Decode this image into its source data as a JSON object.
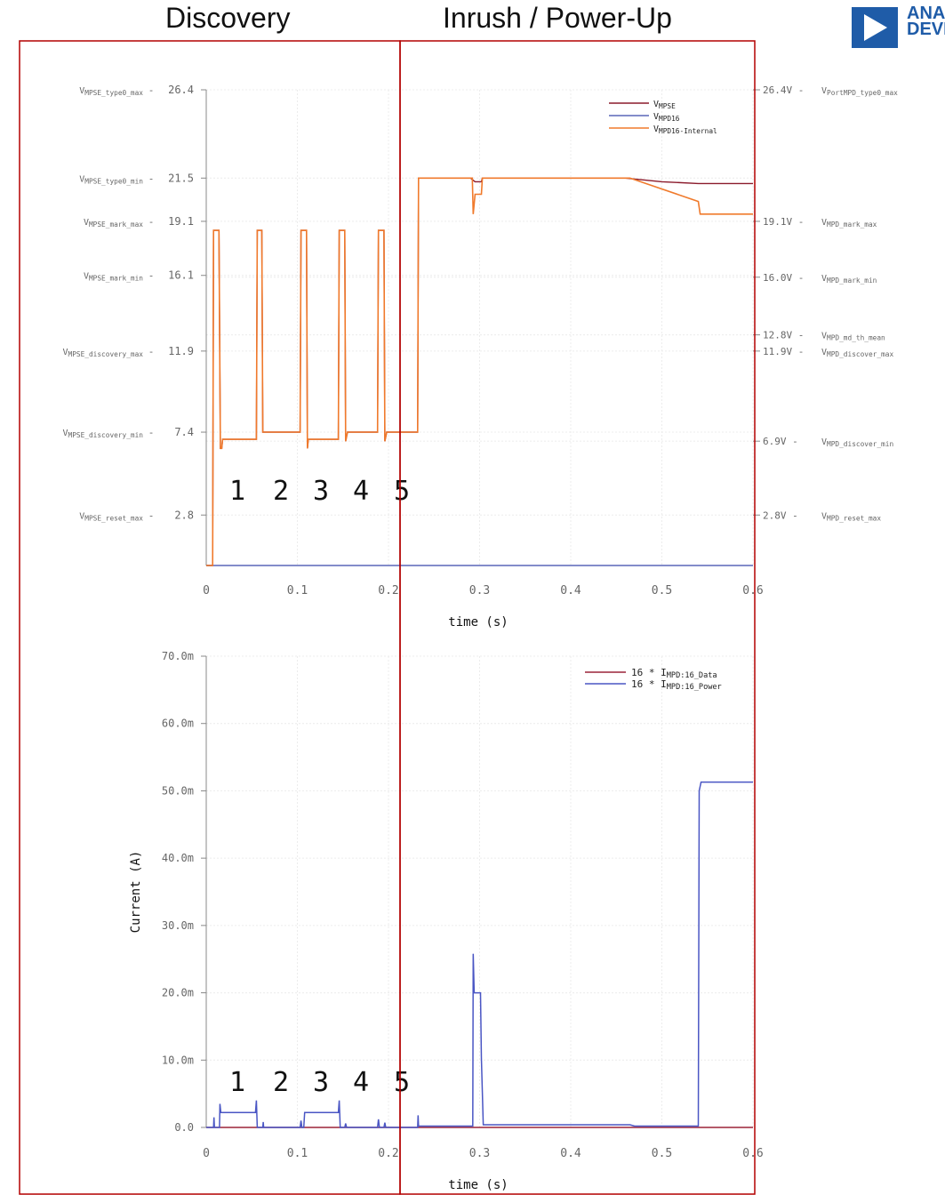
{
  "headers": {
    "discovery": "Discovery",
    "inrush": "Inrush / Power-Up"
  },
  "logo": {
    "line1": "ANALOG",
    "line2": "DEVICES",
    "color": "#1f5ca8"
  },
  "colors": {
    "mpse": "#8b1a2b",
    "mpd16": "#5a67b8",
    "internal": "#f07a2c",
    "frame": "#b30000",
    "data": "#9c2338",
    "power": "#4a56c4"
  },
  "chart_data": [
    {
      "type": "line",
      "xlabel": "time (s)",
      "ylabel": "",
      "xlim": [
        0,
        0.6
      ],
      "ylim": [
        0,
        26.4
      ],
      "x_ticks": [
        "0",
        "0.1",
        "0.2",
        "0.3",
        "0.4",
        "0.5",
        "0.6"
      ],
      "y_ticks": [
        {
          "value": 26.4,
          "label": "26.4",
          "left_name": "V",
          "left_sub": "MPSE_type0_max",
          "right": "26.4V -",
          "right_name": "V",
          "right_sub": "Port",
          "right_sub2": "MPD_type0_max"
        },
        {
          "value": 21.5,
          "label": "21.5",
          "left_name": "V",
          "left_sub": "MPSE_type0_min"
        },
        {
          "value": 19.1,
          "label": "19.1",
          "left_name": "V",
          "left_sub": "MPSE_mark_max",
          "right": "19.1V -",
          "right_name": "V",
          "right_sub": "MPD_mark_max"
        },
        {
          "value": 16.1,
          "label": "16.1",
          "left_name": "V",
          "left_sub": "MPSE_mark_min"
        },
        {
          "value": 16.0,
          "right": "16.0V -",
          "right_name": "V",
          "right_sub": "MPD_mark_min"
        },
        {
          "value": 12.8,
          "right": "12.8V -",
          "right_name": "V",
          "right_sub": "MPD_md_th_mean"
        },
        {
          "value": 11.9,
          "label": "11.9",
          "left_name": "V",
          "left_sub": "MPSE_discovery_max",
          "right": "11.9V -",
          "right_name": "V",
          "right_sub": "MPD_discover_max"
        },
        {
          "value": 7.4,
          "label": "7.4",
          "left_name": "V",
          "left_sub": "MPSE_discovery_min"
        },
        {
          "value": 6.9,
          "right": "6.9V -",
          "right_name": "V",
          "right_sub": "MPD_discover_min"
        },
        {
          "value": 2.8,
          "label": "2.8",
          "left_name": "V",
          "left_sub": "MPSE_reset_max",
          "right": "2.8V -",
          "right_name": "V",
          "right_sub": "MPD_reset_max"
        }
      ],
      "legend_position": "top-right",
      "series": [
        {
          "name": "V",
          "sub": "MPSE",
          "color": "#8b1a2b",
          "points": [
            [
              0,
              0
            ],
            [
              0.007,
              0
            ],
            [
              0.008,
              18.6
            ],
            [
              0.014,
              18.6
            ],
            [
              0.0155,
              6.5
            ],
            [
              0.017,
              6.5
            ],
            [
              0.018,
              7.0
            ],
            [
              0.055,
              7.0
            ],
            [
              0.056,
              18.6
            ],
            [
              0.061,
              18.6
            ],
            [
              0.062,
              7.4
            ],
            [
              0.103,
              7.4
            ],
            [
              0.104,
              18.6
            ],
            [
              0.11,
              18.6
            ],
            [
              0.111,
              6.5
            ],
            [
              0.112,
              7.0
            ],
            [
              0.145,
              7.0
            ],
            [
              0.146,
              18.6
            ],
            [
              0.152,
              18.6
            ],
            [
              0.153,
              6.9
            ],
            [
              0.155,
              7.4
            ],
            [
              0.188,
              7.4
            ],
            [
              0.189,
              18.6
            ],
            [
              0.195,
              18.6
            ],
            [
              0.196,
              6.9
            ],
            [
              0.198,
              7.4
            ],
            [
              0.232,
              7.4
            ],
            [
              0.233,
              21.5
            ],
            [
              0.29,
              21.5
            ],
            [
              0.295,
              21.3
            ],
            [
              0.302,
              21.3
            ],
            [
              0.303,
              21.5
            ],
            [
              0.46,
              21.5
            ],
            [
              0.5,
              21.3
            ],
            [
              0.54,
              21.2
            ],
            [
              0.6,
              21.2
            ]
          ]
        },
        {
          "name": "V",
          "sub": "MPD16",
          "color": "#5a67b8",
          "points": [
            [
              0,
              0
            ],
            [
              0.6,
              0
            ]
          ]
        },
        {
          "name": "V",
          "sub": "MPD16-Internal",
          "color": "#f07a2c",
          "points": [
            [
              0,
              0
            ],
            [
              0.007,
              0
            ],
            [
              0.008,
              18.6
            ],
            [
              0.014,
              18.6
            ],
            [
              0.0155,
              6.5
            ],
            [
              0.017,
              6.5
            ],
            [
              0.018,
              7.0
            ],
            [
              0.055,
              7.0
            ],
            [
              0.056,
              18.6
            ],
            [
              0.061,
              18.6
            ],
            [
              0.062,
              7.4
            ],
            [
              0.103,
              7.4
            ],
            [
              0.104,
              18.6
            ],
            [
              0.11,
              18.6
            ],
            [
              0.111,
              6.5
            ],
            [
              0.112,
              7.0
            ],
            [
              0.145,
              7.0
            ],
            [
              0.146,
              18.6
            ],
            [
              0.152,
              18.6
            ],
            [
              0.153,
              6.9
            ],
            [
              0.155,
              7.4
            ],
            [
              0.188,
              7.4
            ],
            [
              0.189,
              18.6
            ],
            [
              0.195,
              18.6
            ],
            [
              0.196,
              6.9
            ],
            [
              0.198,
              7.4
            ],
            [
              0.232,
              7.4
            ],
            [
              0.233,
              21.5
            ],
            [
              0.292,
              21.5
            ],
            [
              0.293,
              19.5
            ],
            [
              0.295,
              20.6
            ],
            [
              0.302,
              20.6
            ],
            [
              0.303,
              21.5
            ],
            [
              0.465,
              21.5
            ],
            [
              0.54,
              20.2
            ],
            [
              0.542,
              19.5
            ],
            [
              0.6,
              19.5
            ]
          ]
        }
      ],
      "annotations": [
        "1",
        "2",
        "3",
        "4",
        "5"
      ]
    },
    {
      "type": "line",
      "xlabel": "time (s)",
      "ylabel": "Current (A)",
      "xlim": [
        0,
        0.6
      ],
      "ylim": [
        0,
        0.07
      ],
      "x_ticks": [
        "0",
        "0.1",
        "0.2",
        "0.3",
        "0.4",
        "0.5",
        "0.6"
      ],
      "y_ticks": [
        "0.0",
        "10.0m",
        "20.0m",
        "30.0m",
        "40.0m",
        "50.0m",
        "60.0m",
        "70.0m"
      ],
      "legend_position": "top-right",
      "series": [
        {
          "name": "16 * I",
          "sub": "MPD:16_Data",
          "color": "#9c2338",
          "points": [
            [
              0,
              0
            ],
            [
              0.6,
              0
            ]
          ]
        },
        {
          "name": "16 * I",
          "sub": "MPD:16_Power",
          "color": "#4a56c4",
          "points": [
            [
              0,
              0
            ],
            [
              0.008,
              0
            ],
            [
              0.0085,
              0.0015
            ],
            [
              0.009,
              0
            ],
            [
              0.0145,
              0
            ],
            [
              0.015,
              0.0035
            ],
            [
              0.016,
              0.0022
            ],
            [
              0.054,
              0.0022
            ],
            [
              0.055,
              0.004
            ],
            [
              0.056,
              0
            ],
            [
              0.062,
              0
            ],
            [
              0.0625,
              0.0008
            ],
            [
              0.063,
              0
            ],
            [
              0.103,
              0
            ],
            [
              0.104,
              0.001
            ],
            [
              0.105,
              0
            ],
            [
              0.107,
              0
            ],
            [
              0.108,
              0.0022
            ],
            [
              0.145,
              0.0022
            ],
            [
              0.146,
              0.004
            ],
            [
              0.147,
              0
            ],
            [
              0.152,
              0
            ],
            [
              0.153,
              0.0006
            ],
            [
              0.154,
              0
            ],
            [
              0.188,
              0
            ],
            [
              0.189,
              0.0012
            ],
            [
              0.19,
              0
            ],
            [
              0.195,
              0
            ],
            [
              0.196,
              0.0007
            ],
            [
              0.197,
              0
            ],
            [
              0.232,
              0
            ],
            [
              0.2325,
              0.0018
            ],
            [
              0.233,
              0.0002
            ],
            [
              0.2925,
              0.0002
            ],
            [
              0.293,
              0.0258
            ],
            [
              0.294,
              0.02
            ],
            [
              0.301,
              0.02
            ],
            [
              0.302,
              0.0103
            ],
            [
              0.304,
              0.0004
            ],
            [
              0.465,
              0.0004
            ],
            [
              0.47,
              0.0002
            ],
            [
              0.54,
              0.0002
            ],
            [
              0.541,
              0.05
            ],
            [
              0.543,
              0.0513
            ],
            [
              0.6,
              0.0513
            ]
          ]
        }
      ],
      "annotations": [
        "1",
        "2",
        "3",
        "4",
        "5"
      ]
    }
  ]
}
